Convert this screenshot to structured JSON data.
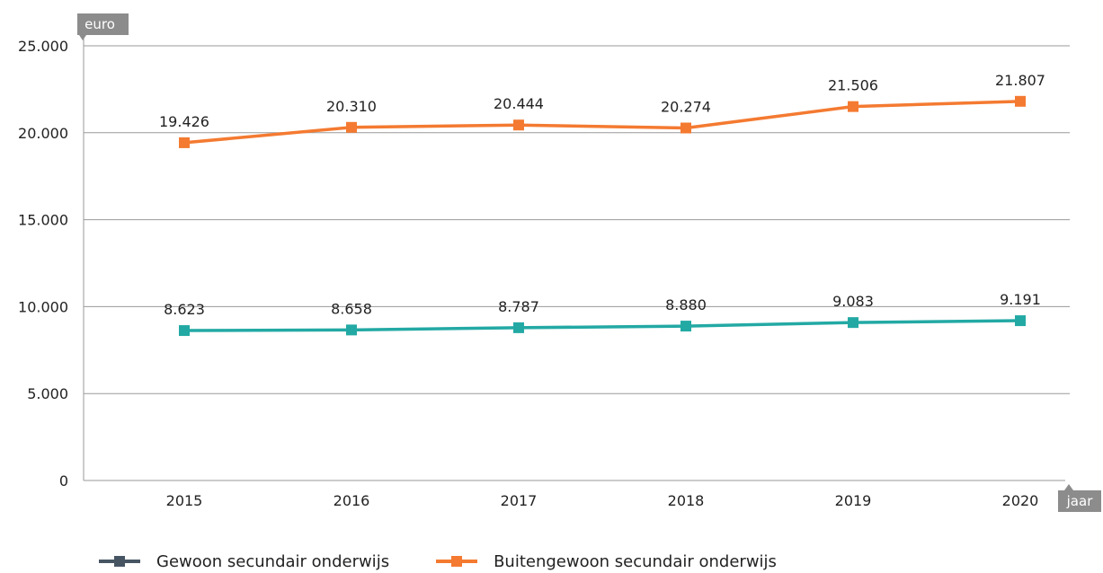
{
  "chart_data": {
    "type": "line",
    "title": "",
    "ylabel": "euro",
    "xlabel": "jaar",
    "categories": [
      "2015",
      "2016",
      "2017",
      "2018",
      "2019",
      "2020"
    ],
    "ylim": [
      0,
      25000
    ],
    "yticks": [
      "0",
      "5.000",
      "10.000",
      "15.000",
      "20.000",
      "25.000"
    ],
    "ytick_values": [
      0,
      5000,
      10000,
      15000,
      20000,
      25000
    ],
    "grid": true,
    "legend_position": "bottom-left",
    "series": [
      {
        "name": "Gewoon secundair onderwijs",
        "color": "#475563",
        "values": [
          8623,
          8658,
          8787,
          8880,
          9083,
          9191
        ],
        "labels": [
          "8.623",
          "8.658",
          "8.787",
          "8.880",
          "9.083",
          "9.191"
        ]
      },
      {
        "name": "Buitengewoon secundair onderwijs",
        "color": "#f47a31",
        "values": [
          19426,
          20310,
          20444,
          20274,
          21506,
          21807
        ],
        "labels": [
          "19.426",
          "20.310",
          "20.444",
          "20.274",
          "21.506",
          "21.807"
        ]
      }
    ],
    "drawn_series_color": "#23a9a4"
  }
}
